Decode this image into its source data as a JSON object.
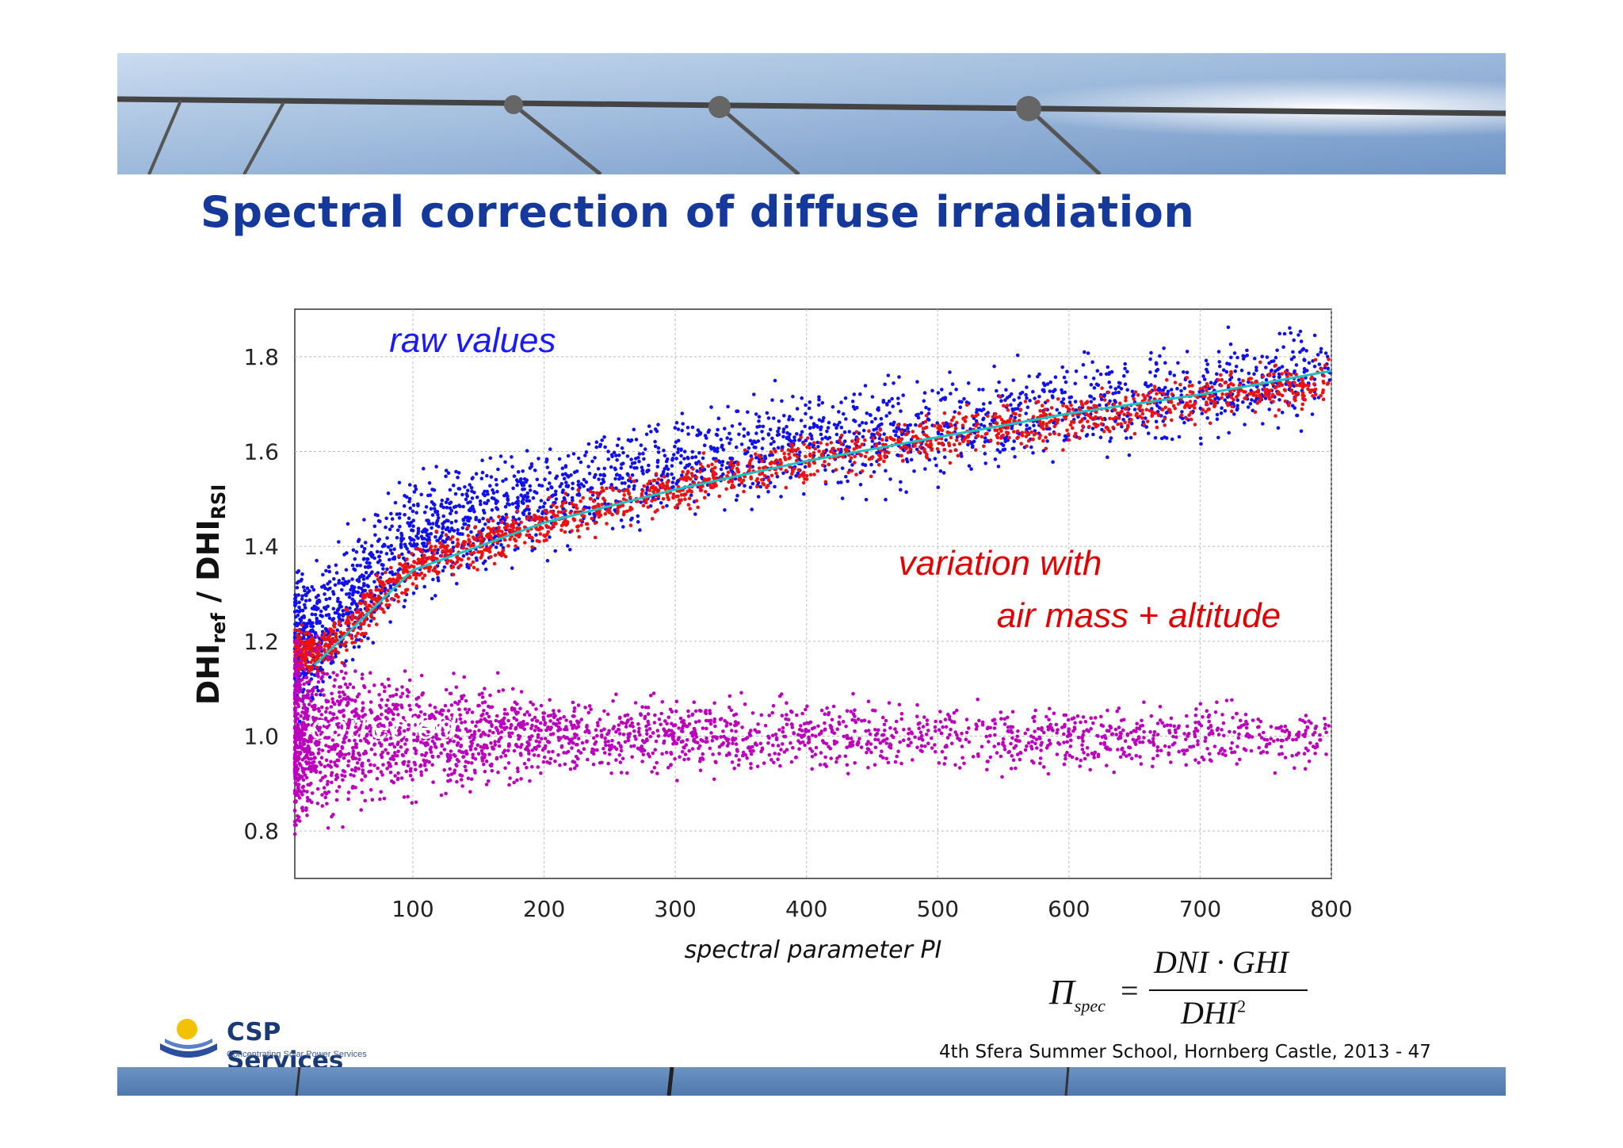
{
  "slide": {
    "title": "Spectral correction of diffuse irradiation",
    "footer": "4th Sfera Summer School, Hornberg Castle, 2013   - 47",
    "logo": {
      "name": "CSP Services",
      "tagline": "Concentrating Solar Power Services"
    },
    "formula": {
      "lhs": "Π",
      "lhs_sub": "spec",
      "numerator": "DNI · GHI",
      "denominator": "DHI",
      "denominator_exp": "2"
    }
  },
  "chart_data": {
    "type": "scatter",
    "xlabel": "spectral parameter PI",
    "ylabel_main": "DHI",
    "ylabel_sub1": "ref",
    "ylabel_sep": " / ",
    "ylabel_main2": "DHI",
    "ylabel_sub2": "RSI",
    "xlim": [
      10,
      800
    ],
    "ylim": [
      0.7,
      1.9
    ],
    "x_ticks": [
      100,
      200,
      300,
      400,
      500,
      600,
      700,
      800
    ],
    "y_ticks": [
      0.8,
      1.0,
      1.2,
      1.4,
      1.6,
      1.8
    ],
    "grid": true,
    "annotations": [
      {
        "text": "raw values",
        "x": 82,
        "y": 1.81,
        "color": "#1a1aff"
      },
      {
        "text": "variation with",
        "x": 470,
        "y": 1.34,
        "color": "#e00000"
      },
      {
        "text": "air mass + altitude",
        "x": 545,
        "y": 1.23,
        "color": "#e00000"
      },
      {
        "text": "corrected",
        "x": 22,
        "y": 0.995,
        "color": "#ffffff"
      }
    ],
    "series": [
      {
        "color": "#1111ee",
        "trend": [
          [
            20,
            1.2
          ],
          [
            100,
            1.42
          ],
          [
            200,
            1.5
          ],
          [
            300,
            1.57
          ],
          [
            400,
            1.62
          ],
          [
            500,
            1.65
          ],
          [
            600,
            1.69
          ],
          [
            700,
            1.72
          ],
          [
            800,
            1.77
          ]
        ]
      },
      {
        "color": "#ee1111",
        "trend": [
          [
            30,
            1.18
          ],
          [
            100,
            1.36
          ],
          [
            200,
            1.45
          ],
          [
            300,
            1.52
          ],
          [
            400,
            1.58
          ],
          [
            500,
            1.63
          ],
          [
            600,
            1.67
          ],
          [
            700,
            1.71
          ],
          [
            800,
            1.75
          ]
        ]
      },
      {
        "color": "#bb00bb",
        "trend": [
          [
            10,
            1.0
          ],
          [
            800,
            1.0
          ]
        ]
      }
    ],
    "fit_curve": {
      "color": "#20c0c0",
      "points": [
        [
          25,
          1.15
        ],
        [
          100,
          1.35
        ],
        [
          200,
          1.45
        ],
        [
          300,
          1.52
        ],
        [
          400,
          1.58
        ],
        [
          500,
          1.63
        ],
        [
          600,
          1.68
        ],
        [
          700,
          1.72
        ],
        [
          800,
          1.77
        ]
      ]
    }
  }
}
